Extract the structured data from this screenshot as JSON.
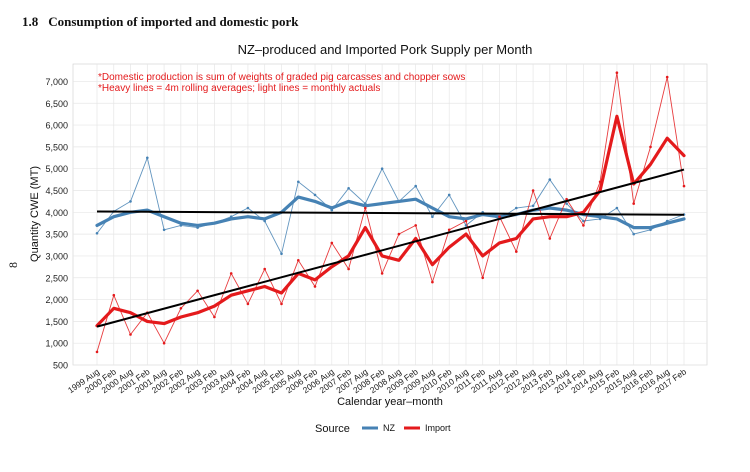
{
  "section": {
    "number": "1.8",
    "title": "Consumption of imported and domestic pork"
  },
  "page_number": "8",
  "colors": {
    "nz": "#4682B4",
    "import": "#E41A1C",
    "trend": "#000000",
    "notes": "#E41A1C"
  },
  "chart_data": {
    "type": "line",
    "title": "NZ–produced and Imported Pork Supply per Month",
    "xlabel": "Calendar year–month",
    "ylabel": "Quantity CWE (MT)",
    "notes": [
      "*Domestic production is sum of weights of graded pig carcasses and chopper sows",
      "*Heavy lines = 4m rolling averages; light lines = monthly actuals"
    ],
    "ylim": [
      500,
      7400
    ],
    "yticks": [
      500,
      1000,
      1500,
      2000,
      2500,
      3000,
      3500,
      4000,
      4500,
      5000,
      5500,
      6000,
      6500,
      7000
    ],
    "ytick_labels": [
      "500",
      "1,000",
      "1,500",
      "2,000",
      "2,500",
      "3,000",
      "3,500",
      "4,000",
      "4,500",
      "5,000",
      "5,500",
      "6,000",
      "6,500",
      "7,000"
    ],
    "xtick_labels": [
      "1999 Aug",
      "2000 Feb",
      "2000 Aug",
      "2001 Feb",
      "2001 Aug",
      "2002 Feb",
      "2002 Aug",
      "2003 Feb",
      "2003 Aug",
      "2004 Feb",
      "2004 Aug",
      "2005 Feb",
      "2005 Aug",
      "2006 Feb",
      "2006 Aug",
      "2007 Feb",
      "2007 Aug",
      "2008 Feb",
      "2008 Aug",
      "2009 Feb",
      "2009 Aug",
      "2010 Feb",
      "2010 Aug",
      "2011 Feb",
      "2011 Aug",
      "2012 Feb",
      "2012 Aug",
      "2013 Feb",
      "2013 Aug",
      "2014 Feb",
      "2014 Aug",
      "2015 Feb",
      "2015 Aug",
      "2016 Feb",
      "2016 Aug",
      "2017 Feb"
    ],
    "legend": {
      "title": "Source",
      "position": "bottom",
      "entries": [
        "NZ",
        "Import"
      ]
    },
    "grid": true,
    "series": [
      {
        "name": "NZ",
        "rolling_avg": [
          3700,
          3900,
          4000,
          4050,
          3900,
          3750,
          3700,
          3750,
          3850,
          3900,
          3850,
          4000,
          4350,
          4250,
          4100,
          4250,
          4150,
          4200,
          4250,
          4300,
          4100,
          3900,
          3850,
          3950,
          3900,
          3950,
          4050,
          4100,
          4050,
          3950,
          3900,
          3850,
          3650,
          3650,
          3750,
          3850
        ],
        "monthly": [
          3520,
          4020,
          4250,
          5250,
          3600,
          3700,
          3650,
          3750,
          3900,
          4100,
          3800,
          3050,
          4700,
          4400,
          4050,
          4550,
          4200,
          5000,
          4250,
          4600,
          3900,
          4400,
          3700,
          4000,
          3850,
          4100,
          4150,
          4750,
          4200,
          3800,
          3850,
          4100,
          3500,
          3600,
          3800,
          3950
        ],
        "trend": [
          4020,
          3945
        ]
      },
      {
        "name": "Import",
        "rolling_avg": [
          1400,
          1800,
          1700,
          1500,
          1450,
          1600,
          1700,
          1850,
          2100,
          2200,
          2300,
          2150,
          2600,
          2450,
          2750,
          3000,
          3650,
          3000,
          2900,
          3400,
          2800,
          3200,
          3500,
          3000,
          3300,
          3400,
          3850,
          3900,
          3900,
          4000,
          4500,
          6200,
          4650,
          5100,
          5700,
          5300
        ],
        "monthly": [
          800,
          2100,
          1200,
          1700,
          1000,
          1800,
          2200,
          1600,
          2600,
          1900,
          2700,
          1900,
          2900,
          2300,
          3300,
          2700,
          4100,
          2600,
          3500,
          3700,
          2400,
          3600,
          3800,
          2500,
          3900,
          3100,
          4500,
          3400,
          4300,
          3700,
          4700,
          7200,
          4200,
          5500,
          7100,
          4600
        ],
        "trend": [
          1380,
          4980
        ]
      }
    ]
  }
}
